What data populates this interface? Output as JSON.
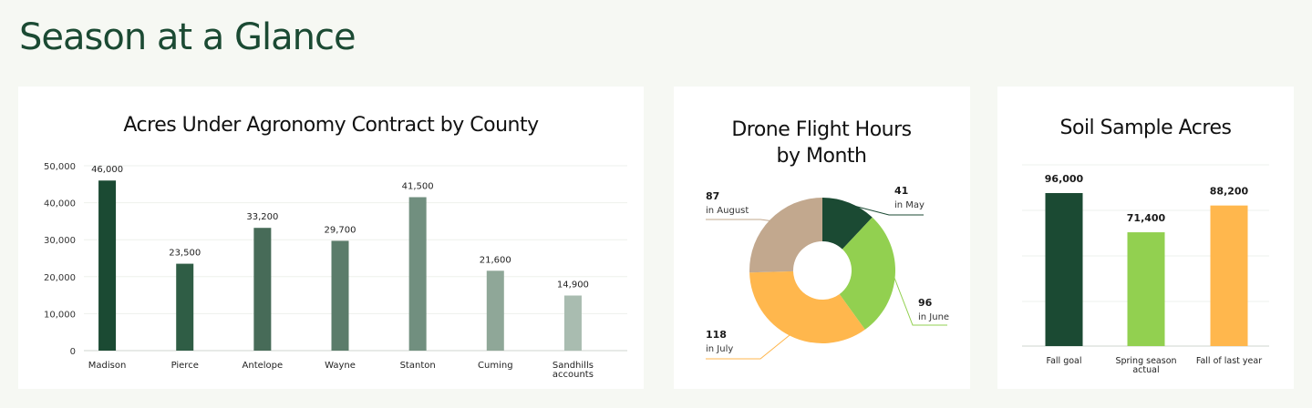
{
  "page": {
    "title": "Season at a Glance"
  },
  "chart_data": [
    {
      "type": "bar",
      "title": "Acres Under Agronomy Contract by County",
      "categories": [
        "Madison",
        "Pierce",
        "Antelope",
        "Wayne",
        "Stanton",
        "Cuming",
        "Sandhills accounts"
      ],
      "values": [
        46000,
        23500,
        33200,
        29700,
        41500,
        21600,
        14900
      ],
      "value_labels": [
        "46,000",
        "23,500",
        "33,200",
        "29,700",
        "41,500",
        "21,600",
        "14,900"
      ],
      "y_ticks": [
        "0",
        "10,000",
        "20,000",
        "30,000",
        "40,000",
        "50,000"
      ],
      "ylim": [
        0,
        50000
      ],
      "grid": true,
      "colors": [
        "#1b4a33",
        "#2f5d45",
        "#476b58",
        "#5b7c6a",
        "#718f7f",
        "#8fa798",
        "#a9bcb0"
      ]
    },
    {
      "type": "pie",
      "title": "Drone Flight Hours by Month",
      "title_lines": [
        "Drone Flight Hours",
        "by Month"
      ],
      "slices": [
        {
          "value": 41,
          "label": "41",
          "caption": "in May",
          "color": "#1b4a33"
        },
        {
          "value": 96,
          "label": "96",
          "caption": "in June",
          "color": "#92d050"
        },
        {
          "value": 118,
          "label": "118",
          "caption": "in July",
          "color": "#ffb74d"
        },
        {
          "value": 87,
          "label": "87",
          "caption": "in August",
          "color": "#c2a88e"
        }
      ]
    },
    {
      "type": "bar",
      "title": "Soil Sample Acres",
      "categories": [
        "Fall goal",
        "Spring season actual",
        "Fall of last year"
      ],
      "category_lines": [
        [
          "Fall goal"
        ],
        [
          "Spring season",
          "actual"
        ],
        [
          "Fall of last year"
        ]
      ],
      "values": [
        96000,
        71400,
        88200
      ],
      "value_labels": [
        "96,000",
        "71,400",
        "88,200"
      ],
      "grid": true,
      "colors": [
        "#1b4a33",
        "#92d050",
        "#ffb74d"
      ]
    }
  ]
}
